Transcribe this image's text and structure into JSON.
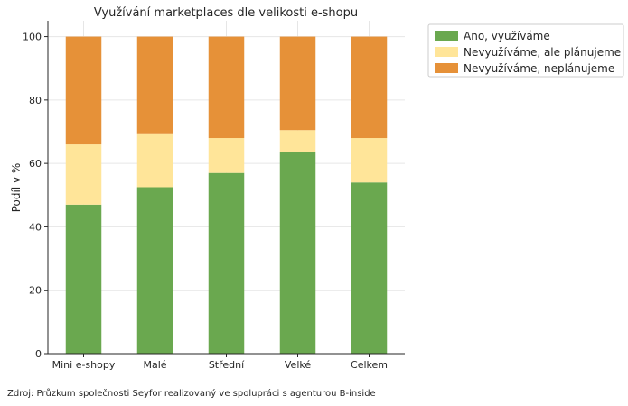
{
  "chart_data": {
    "type": "bar",
    "stacked": true,
    "title": "Využívání marketplaces dle velikosti e-shopu",
    "xlabel": "",
    "ylabel": "Podíl v %",
    "ylim": [
      0,
      105
    ],
    "yticks": [
      0,
      20,
      40,
      60,
      80,
      100
    ],
    "grid": true,
    "legend_position": "outside-top-right",
    "categories": [
      "Mini e-shopy",
      "Malé",
      "Střední",
      "Velké",
      "Celkem"
    ],
    "series": [
      {
        "name": "Ano, využíváme",
        "color": "#6aa84f",
        "values": [
          47,
          52.5,
          57,
          63.5,
          54
        ]
      },
      {
        "name": "Nevyužíváme, ale plánujeme",
        "color": "#ffe599",
        "values": [
          19,
          17,
          11,
          7,
          14
        ]
      },
      {
        "name": "Nevyužíváme, neplánujeme",
        "color": "#e69138",
        "values": [
          34,
          30.5,
          32,
          29.5,
          32
        ]
      }
    ]
  },
  "source": "Zdroj: Průzkum společnosti Seyfor realizovaný ve spolupráci s agenturou B-inside"
}
